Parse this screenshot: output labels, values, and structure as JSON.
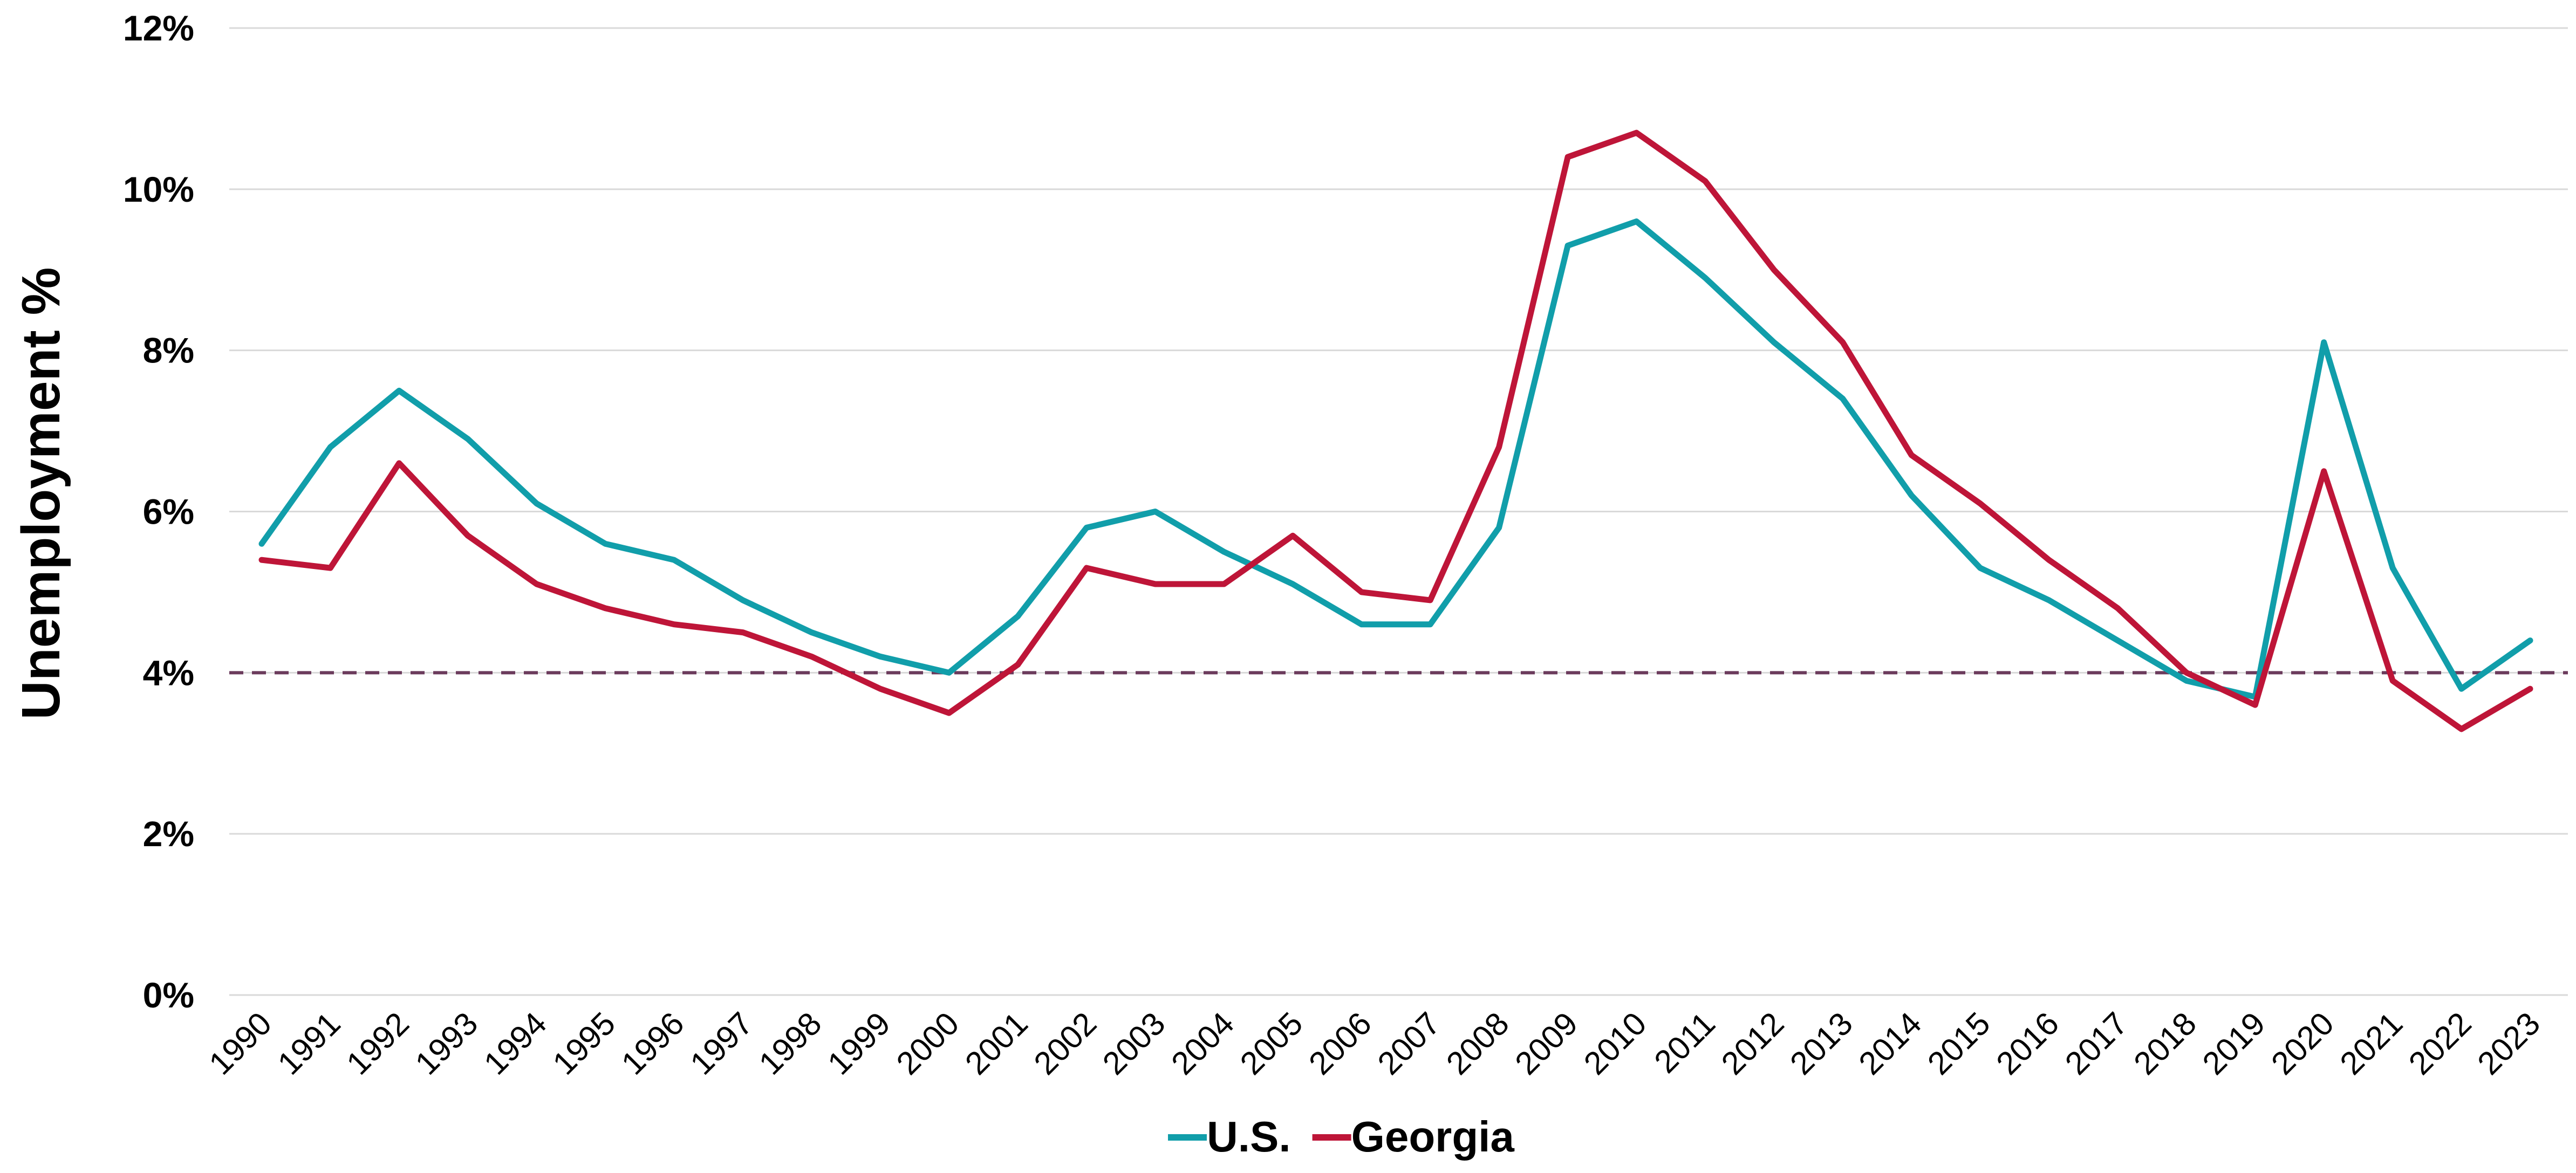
{
  "chart_data": {
    "type": "line",
    "title": "",
    "xlabel": "",
    "ylabel": "Unemployment %",
    "ylim": [
      0,
      12
    ],
    "y_ticks": [
      "0%",
      "2%",
      "4%",
      "6%",
      "8%",
      "10%",
      "12%"
    ],
    "grid": true,
    "legend_position": "bottom",
    "x": [
      "1990",
      "1991",
      "1992",
      "1993",
      "1994",
      "1995",
      "1996",
      "1997",
      "1998",
      "1999",
      "2000",
      "2001",
      "2002",
      "2003",
      "2004",
      "2005",
      "2006",
      "2007",
      "2008",
      "2009",
      "2010",
      "2011",
      "2012",
      "2013",
      "2014",
      "2015",
      "2016",
      "2017",
      "2018",
      "2019",
      "2020",
      "2021",
      "2022",
      "2023"
    ],
    "series": [
      {
        "name": "U.S.",
        "color": "#119EAA",
        "values": [
          5.6,
          6.8,
          7.5,
          6.9,
          6.1,
          5.6,
          5.4,
          4.9,
          4.5,
          4.2,
          4.0,
          4.7,
          5.8,
          6.0,
          5.5,
          5.1,
          4.6,
          4.6,
          5.8,
          9.3,
          9.6,
          8.9,
          8.1,
          7.4,
          6.2,
          5.3,
          4.9,
          4.4,
          3.9,
          3.7,
          8.1,
          5.3,
          3.8,
          4.4
        ]
      },
      {
        "name": "Georgia",
        "color": "#BE1538",
        "values": [
          5.4,
          5.3,
          6.6,
          5.7,
          5.1,
          4.8,
          4.6,
          4.5,
          4.2,
          3.8,
          3.5,
          4.1,
          5.3,
          5.1,
          5.1,
          5.7,
          5.0,
          4.9,
          6.8,
          10.4,
          10.7,
          10.1,
          9.0,
          8.1,
          6.7,
          6.1,
          5.4,
          4.8,
          4.0,
          3.6,
          6.5,
          3.9,
          3.3,
          3.8
        ]
      }
    ],
    "reference_line": {
      "value": 4.0,
      "color": "#6B3B5C",
      "style": "dashed"
    }
  }
}
